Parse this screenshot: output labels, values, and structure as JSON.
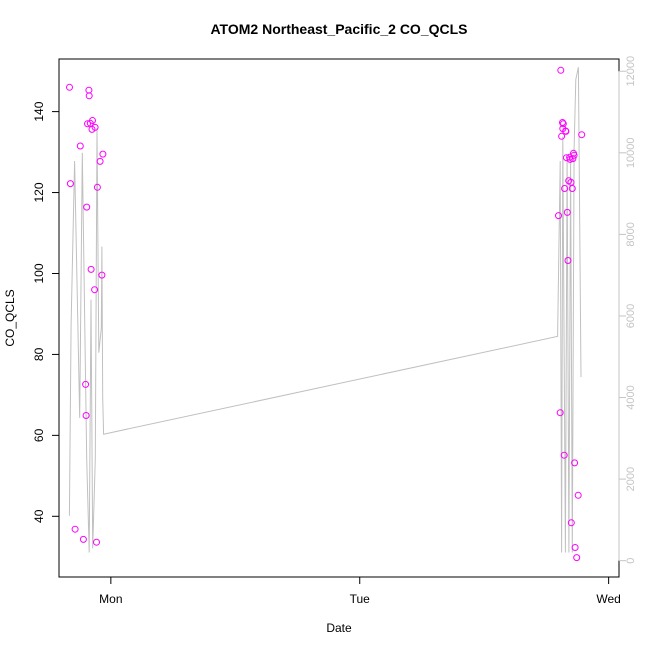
{
  "chart_data": {
    "type": "scatter",
    "title": "ATOM2 Northeast_Pacific_2 CO_QCLS",
    "xlabel": "Date",
    "ylabel": "CO_QCLS",
    "x_axis": {
      "type": "date",
      "range": [
        "Sun 19:00",
        "Wed 01:00"
      ],
      "ticks": [
        {
          "label": "Mon",
          "value": "Mon 00:00"
        },
        {
          "label": "Tue",
          "value": "Tue 00:00"
        },
        {
          "label": "Wed",
          "value": "Wed 00:00"
        }
      ]
    },
    "y_left": {
      "range": [
        25,
        153
      ],
      "ticks": [
        40,
        60,
        80,
        100,
        120,
        140
      ]
    },
    "y_right": {
      "range": [
        -400,
        12300
      ],
      "ticks": [
        0,
        2000,
        4000,
        6000,
        8000,
        10000,
        12000
      ],
      "tick_labels": [
        "0",
        "2000",
        "4000",
        "6000",
        "8000",
        "10000",
        "12000"
      ]
    },
    "colors": {
      "points": "#ff00ff",
      "line": "#c0c0c0",
      "right_axis": "#c4c4c4"
    },
    "series": [
      {
        "kind": "points",
        "axis": "left",
        "points": [
          [
            "Sun 20:01",
            146
          ],
          [
            "Sun 20:06",
            122.2
          ],
          [
            "Sun 20:33",
            36.8
          ],
          [
            "Sun 21:03",
            131.5
          ],
          [
            "Sun 21:21",
            34.3
          ],
          [
            "Sun 21:34",
            72.6
          ],
          [
            "Sun 21:37",
            64.9
          ],
          [
            "Sun 21:40",
            116.4
          ],
          [
            "Sun 21:45",
            137
          ],
          [
            "Sun 21:53",
            145.3
          ],
          [
            "Sun 21:55",
            143.9
          ],
          [
            "Sun 22:01",
            137.1
          ],
          [
            "Sun 22:06",
            101
          ],
          [
            "Sun 22:11",
            135.6
          ],
          [
            "Sun 22:14",
            137.8
          ],
          [
            "Sun 22:26",
            96
          ],
          [
            "Sun 22:29",
            136.1
          ],
          [
            "Sun 22:37",
            33.6
          ],
          [
            "Sun 22:42",
            121.3
          ],
          [
            "Sun 22:58",
            127.7
          ],
          [
            "Sun 23:08",
            99.6
          ],
          [
            "Sun 23:14",
            129.5
          ],
          [
            "Tue 19:10",
            114.3
          ],
          [
            "Tue 19:20",
            65.6
          ],
          [
            "Tue 19:23",
            150.2
          ],
          [
            "Tue 19:28",
            133.9
          ],
          [
            "Tue 19:33",
            137.3
          ],
          [
            "Tue 19:35",
            135.8
          ],
          [
            "Tue 19:38",
            137
          ],
          [
            "Tue 19:43",
            55.1
          ],
          [
            "Tue 19:45",
            121
          ],
          [
            "Tue 19:51",
            135.2
          ],
          [
            "Tue 19:53",
            135.1
          ],
          [
            "Tue 19:56",
            128.6
          ],
          [
            "Tue 20:01",
            115.1
          ],
          [
            "Tue 20:05",
            103.2
          ],
          [
            "Tue 20:09",
            122.9
          ],
          [
            "Tue 20:14",
            128.7
          ],
          [
            "Tue 20:17",
            128.2
          ],
          [
            "Tue 20:22",
            122.5
          ],
          [
            "Tue 20:24",
            38.4
          ],
          [
            "Tue 20:30",
            121
          ],
          [
            "Tue 20:33",
            128.4
          ],
          [
            "Tue 20:37",
            129.7
          ],
          [
            "Tue 20:40",
            129.2
          ],
          [
            "Tue 20:43",
            53.2
          ],
          [
            "Tue 20:46",
            32.3
          ],
          [
            "Tue 20:55",
            29.8
          ],
          [
            "Tue 21:04",
            45.2
          ],
          [
            "Tue 21:24",
            134.3
          ]
        ]
      },
      {
        "kind": "line",
        "axis": "right",
        "points": [
          [
            "Sun 20:00",
            1100
          ],
          [
            "Sun 20:10",
            5800
          ],
          [
            "Sun 20:30",
            9800
          ],
          [
            "Sun 21:00",
            3500
          ],
          [
            "Sun 21:15",
            10000
          ],
          [
            "Sun 21:40",
            2500
          ],
          [
            "Sun 21:55",
            200
          ],
          [
            "Sun 22:05",
            6400
          ],
          [
            "Sun 22:15",
            300
          ],
          [
            "Sun 22:30",
            2500
          ],
          [
            "Sun 22:40",
            10600
          ],
          [
            "Sun 22:50",
            5100
          ],
          [
            "Sun 23:05",
            5700
          ],
          [
            "Sun 23:08",
            7700
          ],
          [
            "Sun 23:13",
            4000
          ],
          [
            "Sun 23:18",
            3100
          ],
          [
            "Tue 19:05",
            5500
          ],
          [
            "Tue 19:20",
            9800
          ],
          [
            "Tue 19:28",
            200
          ],
          [
            "Tue 19:35",
            10400
          ],
          [
            "Tue 19:50",
            200
          ],
          [
            "Tue 20:00",
            9900
          ],
          [
            "Tue 20:10",
            200
          ],
          [
            "Tue 20:20",
            9800
          ],
          [
            "Tue 20:30",
            200
          ],
          [
            "Tue 20:40",
            10100
          ],
          [
            "Tue 20:50",
            11800
          ],
          [
            "Tue 21:05",
            12100
          ],
          [
            "Tue 21:20",
            4500
          ]
        ]
      }
    ],
    "grid": false,
    "legend": "none"
  }
}
